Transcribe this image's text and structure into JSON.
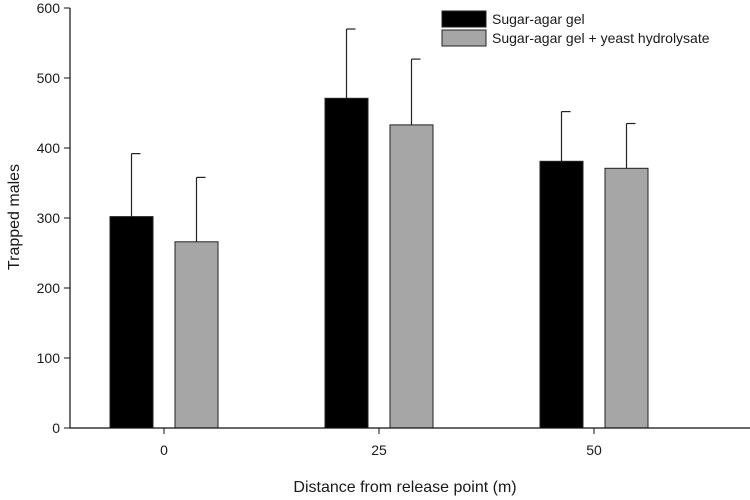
{
  "chart_data": {
    "type": "bar",
    "xlabel": "Distance from release point (m)",
    "ylabel": "Trapped males",
    "ylim": [
      0,
      600
    ],
    "yticks": [
      0,
      100,
      200,
      300,
      400,
      500,
      600
    ],
    "categories": [
      "0",
      "25",
      "50"
    ],
    "legend_position": "top-right",
    "series": [
      {
        "name": "Sugar-agar gel",
        "color": "#000000",
        "values": [
          302,
          471,
          381
        ],
        "error": [
          90,
          99,
          71
        ]
      },
      {
        "name": "Sugar-agar gel + yeast hydrolysate",
        "color": "#a6a6a6",
        "values": [
          266,
          433,
          371
        ],
        "error": [
          92,
          94,
          64
        ]
      }
    ],
    "error_bars": "upper"
  }
}
